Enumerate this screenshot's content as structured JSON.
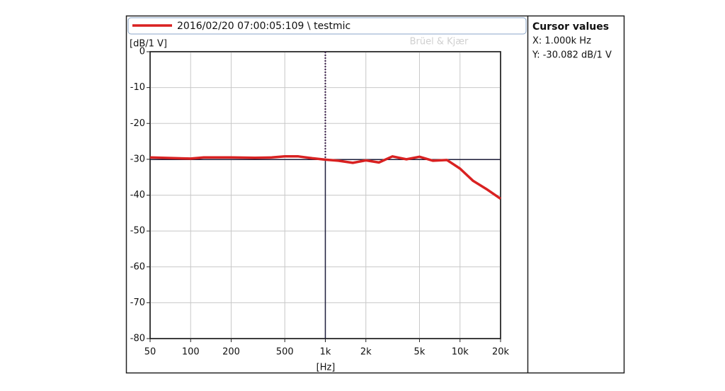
{
  "chart_data": {
    "type": "line",
    "legend_label": "2016/02/20 07:00:05:109 \\ testmic",
    "y_axis_label": "[dB/1 V]",
    "x_axis_label": "[Hz]",
    "watermark": "Brüel & Kjær",
    "xscale": "log",
    "xlim": [
      50,
      20000
    ],
    "xticks": [
      50,
      100,
      200,
      500,
      {
        "value": 1000,
        "label": "1k"
      },
      {
        "value": 2000,
        "label": "2k"
      },
      {
        "value": 5000,
        "label": "5k"
      },
      {
        "value": 10000,
        "label": "10k"
      },
      {
        "value": 20000,
        "label": "20k"
      }
    ],
    "ylim": [
      -80,
      0
    ],
    "yticks": [
      0,
      -10,
      -20,
      -30,
      -40,
      -50,
      -60,
      -70,
      -80
    ],
    "grid": true,
    "x": [
      50,
      100,
      125,
      200,
      300,
      400,
      500,
      630,
      800,
      1000,
      1250,
      1600,
      2000,
      2500,
      3150,
      4000,
      5000,
      6300,
      8000,
      10000,
      12500,
      16000,
      20000
    ],
    "series": [
      {
        "name": "2016/02/20 07:00:05:109 \\ testmic",
        "color": "#d92121",
        "values": [
          -29.5,
          -29.8,
          -29.5,
          -29.5,
          -29.6,
          -29.5,
          -29.2,
          -29.2,
          -29.7,
          -30.1,
          -30.4,
          -31,
          -30.3,
          -30.9,
          -29.2,
          -30,
          -29.3,
          -30.4,
          -30.2,
          -32.6,
          -36,
          -38.5,
          -41
        ]
      }
    ],
    "cursor": {
      "x": 1000,
      "y": -30.082
    },
    "cursor_values": {
      "title": "Cursor values",
      "x_text": "X:  1.000k Hz",
      "y_text": "Y:  -30.082 dB/1 V"
    }
  }
}
